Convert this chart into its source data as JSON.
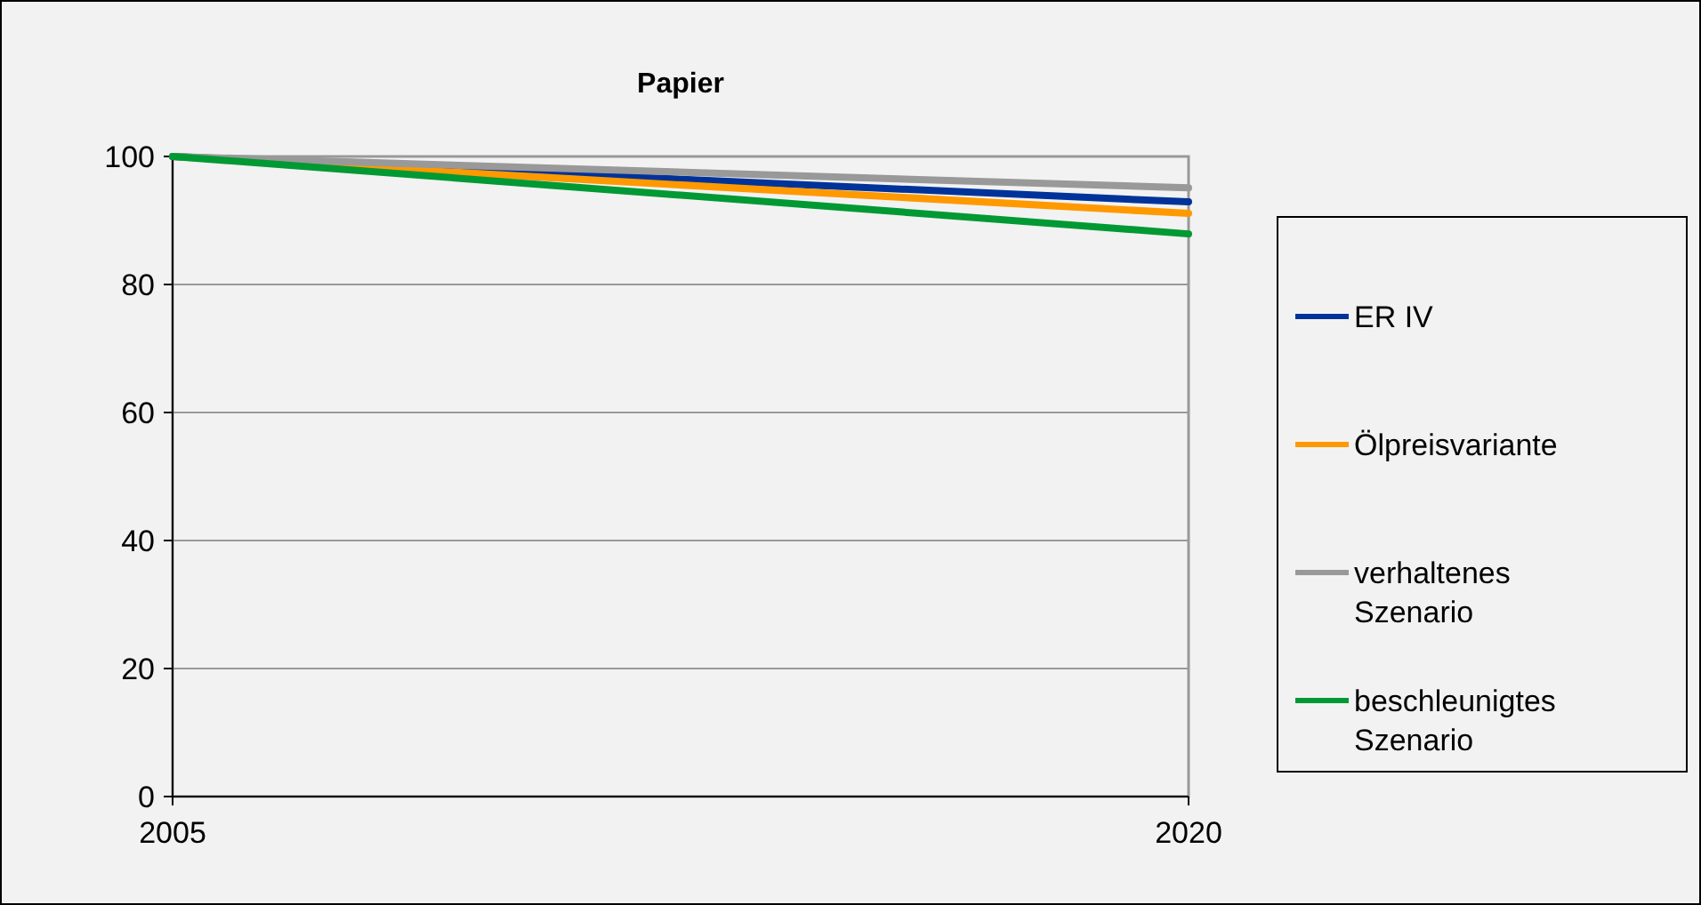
{
  "chart_data": {
    "type": "line",
    "title": "Papier",
    "x": [
      2005,
      2020
    ],
    "xlim": [
      2005,
      2020
    ],
    "xticks": [
      2005,
      2020
    ],
    "ylim": [
      0,
      100
    ],
    "yticks": [
      0,
      20,
      40,
      60,
      80,
      100
    ],
    "grid": "y",
    "legend": "right",
    "marker": "none",
    "line_style": "solid",
    "series": [
      {
        "name": "ER IV",
        "color": "#003399",
        "values": [
          100,
          92.9
        ]
      },
      {
        "name": "Ölpreisvariante",
        "color": "#ff9900",
        "values": [
          100,
          91.1
        ]
      },
      {
        "name": "verhaltenes Szenario",
        "color": "#999999",
        "values": [
          100,
          95.1
        ]
      },
      {
        "name": "beschleunigtes Szenario",
        "color": "#009933",
        "values": [
          100,
          87.9
        ]
      }
    ]
  }
}
